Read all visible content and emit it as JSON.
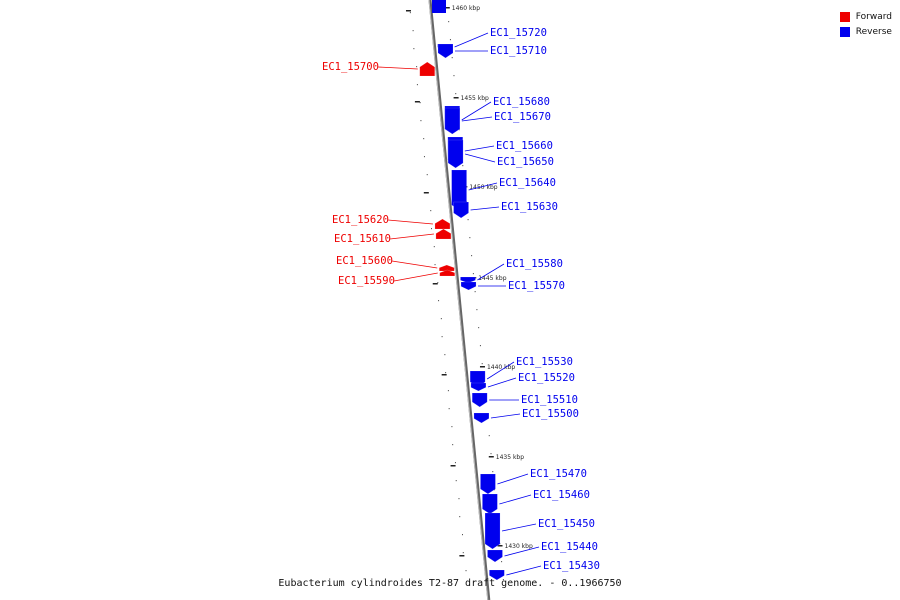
{
  "title": "Eubacterium cylindroides T2-87 draft genome. - 0..1966750",
  "legend": [
    {
      "label": "Forward",
      "color": "#ee0000"
    },
    {
      "label": "Reverse",
      "color": "#0000ee"
    }
  ],
  "colors": {
    "forward": "#ee0000",
    "reverse": "#0000ee",
    "backbone": "#888888"
  },
  "kbp_marks": [
    "1460 kbp",
    "1455 kbp",
    "1450 kbp",
    "1445 kbp",
    "1440 kbp",
    "1435 kbp",
    "1430 kbp"
  ],
  "genes": [
    {
      "id": "EC1_15720",
      "strand": "reverse"
    },
    {
      "id": "EC1_15710",
      "strand": "reverse"
    },
    {
      "id": "EC1_15700",
      "strand": "forward"
    },
    {
      "id": "EC1_15680",
      "strand": "reverse"
    },
    {
      "id": "EC1_15670",
      "strand": "reverse"
    },
    {
      "id": "EC1_15660",
      "strand": "reverse"
    },
    {
      "id": "EC1_15650",
      "strand": "reverse"
    },
    {
      "id": "EC1_15640",
      "strand": "reverse"
    },
    {
      "id": "EC1_15630",
      "strand": "reverse"
    },
    {
      "id": "EC1_15620",
      "strand": "forward"
    },
    {
      "id": "EC1_15610",
      "strand": "forward"
    },
    {
      "id": "EC1_15600",
      "strand": "forward"
    },
    {
      "id": "EC1_15590",
      "strand": "forward"
    },
    {
      "id": "EC1_15580",
      "strand": "reverse"
    },
    {
      "id": "EC1_15570",
      "strand": "reverse"
    },
    {
      "id": "EC1_15530",
      "strand": "reverse"
    },
    {
      "id": "EC1_15520",
      "strand": "reverse"
    },
    {
      "id": "EC1_15510",
      "strand": "reverse"
    },
    {
      "id": "EC1_15500",
      "strand": "reverse"
    },
    {
      "id": "EC1_15470",
      "strand": "reverse"
    },
    {
      "id": "EC1_15460",
      "strand": "reverse"
    },
    {
      "id": "EC1_15450",
      "strand": "reverse"
    },
    {
      "id": "EC1_15440",
      "strand": "reverse"
    },
    {
      "id": "EC1_15430",
      "strand": "reverse"
    }
  ]
}
